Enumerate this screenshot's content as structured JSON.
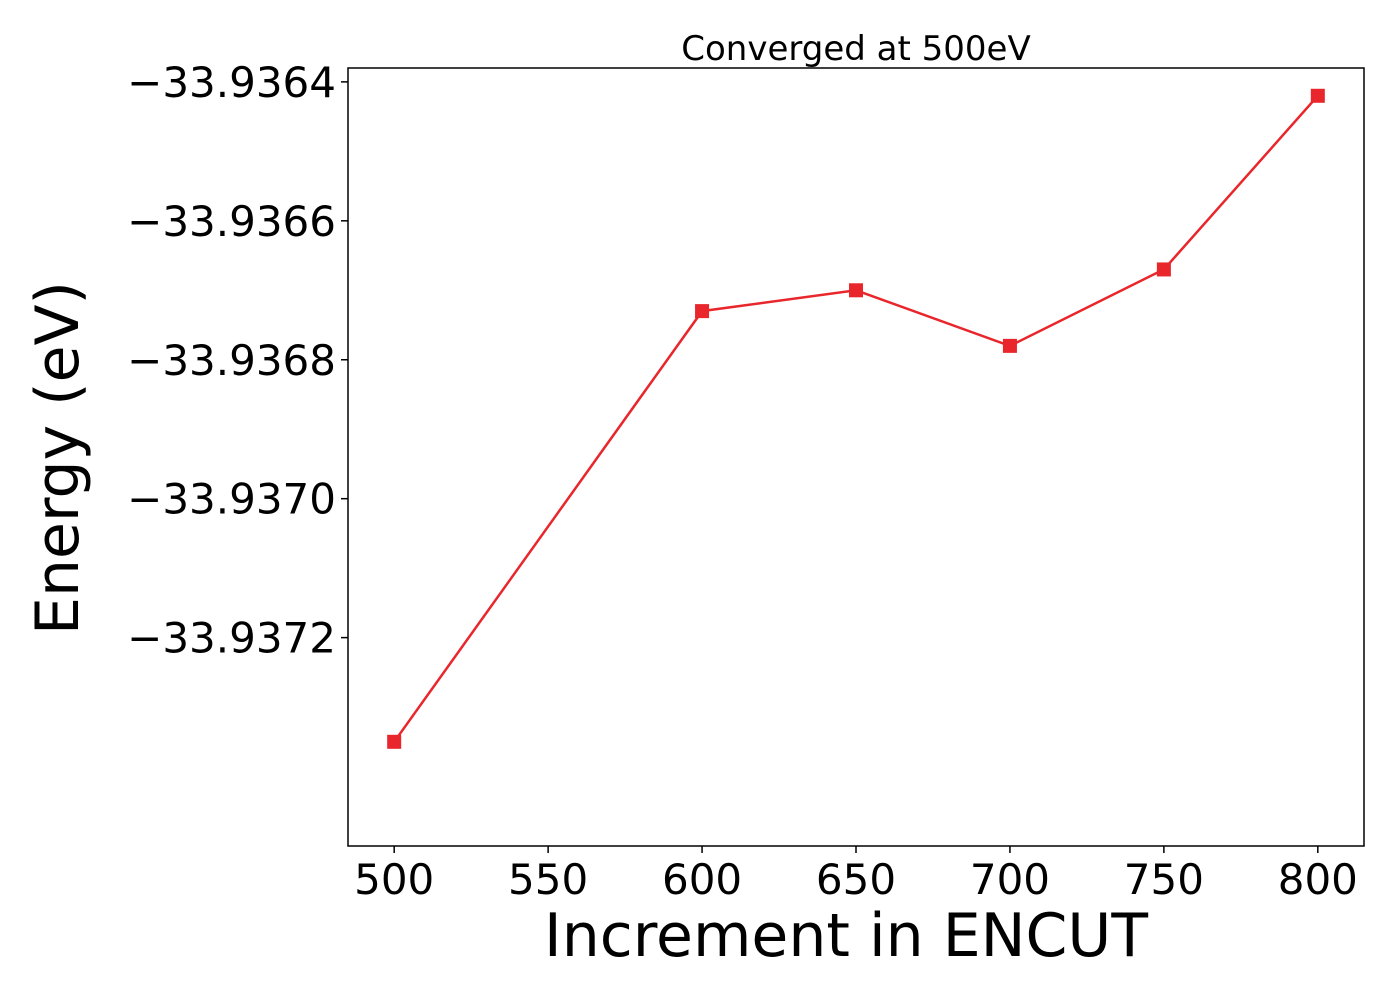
{
  "chart_data": {
    "type": "line",
    "title": "Converged at 500eV",
    "xlabel": "Increment in ENCUT",
    "ylabel": "Energy (eV)",
    "x": [
      500,
      600,
      650,
      700,
      750,
      800
    ],
    "series": [
      {
        "values": [
          -33.93735,
          -33.93673,
          -33.9367,
          -33.93678,
          -33.93667,
          -33.93642
        ]
      }
    ],
    "xticks": [
      500,
      550,
      600,
      650,
      700,
      750,
      800
    ],
    "xtick_labels": [
      "500",
      "550",
      "600",
      "650",
      "700",
      "750",
      "800"
    ],
    "yticks": [
      -33.9364,
      -33.9366,
      -33.9368,
      -33.937,
      -33.9372
    ],
    "ytick_labels": [
      "−33.9364",
      "−33.9366",
      "−33.9368",
      "−33.9370",
      "−33.9372"
    ],
    "xlim": [
      485,
      815
    ],
    "ylim": [
      -33.9375,
      -33.93638
    ],
    "grid": false,
    "legend": "none",
    "marker": "square",
    "colors": {
      "series": "#e8262b",
      "axes": "#000000"
    }
  }
}
